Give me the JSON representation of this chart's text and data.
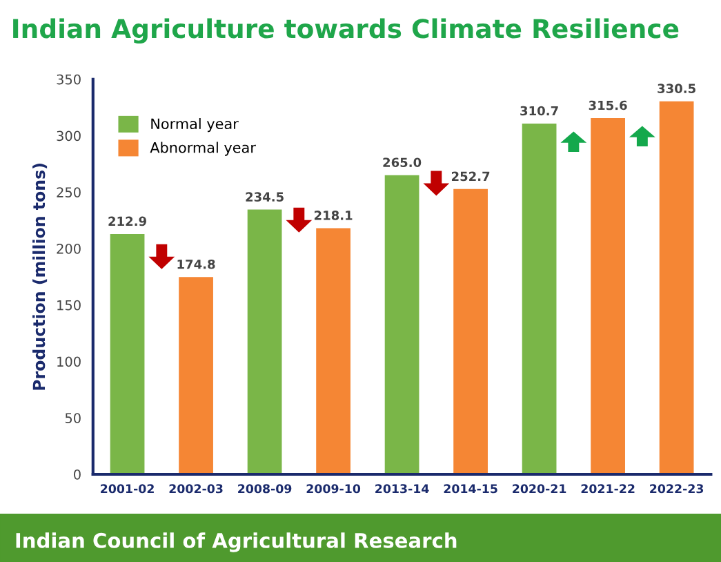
{
  "chart_data": {
    "type": "bar",
    "title": "Indian Agriculture towards Climate Resilience",
    "ylabel": "Production (million tons)",
    "categories": [
      "2001-02",
      "2002-03",
      "2008-09",
      "2009-10",
      "2013-14",
      "2014-15",
      "2020-21",
      "2021-22",
      "2022-23"
    ],
    "series": [
      {
        "name": "Normal year",
        "color": "#7ab648",
        "values": [
          212.9,
          null,
          234.5,
          null,
          265.0,
          null,
          310.7,
          null,
          null
        ]
      },
      {
        "name": "Abnormal year",
        "color": "#f58634",
        "values": [
          null,
          174.8,
          null,
          218.1,
          null,
          252.7,
          null,
          315.6,
          330.5
        ]
      }
    ],
    "value_labels": [
      "212.9",
      "174.8",
      "234.5",
      "218.1",
      "265.0",
      "252.7",
      "310.7",
      "315.6",
      "330.5"
    ],
    "ylim": [
      0,
      350
    ],
    "yticks": [
      0,
      50,
      100,
      150,
      200,
      250,
      300,
      350
    ],
    "grid": false,
    "legend": "top left",
    "annotations": [
      "Indian Council of Agricultural Research"
    ]
  }
}
